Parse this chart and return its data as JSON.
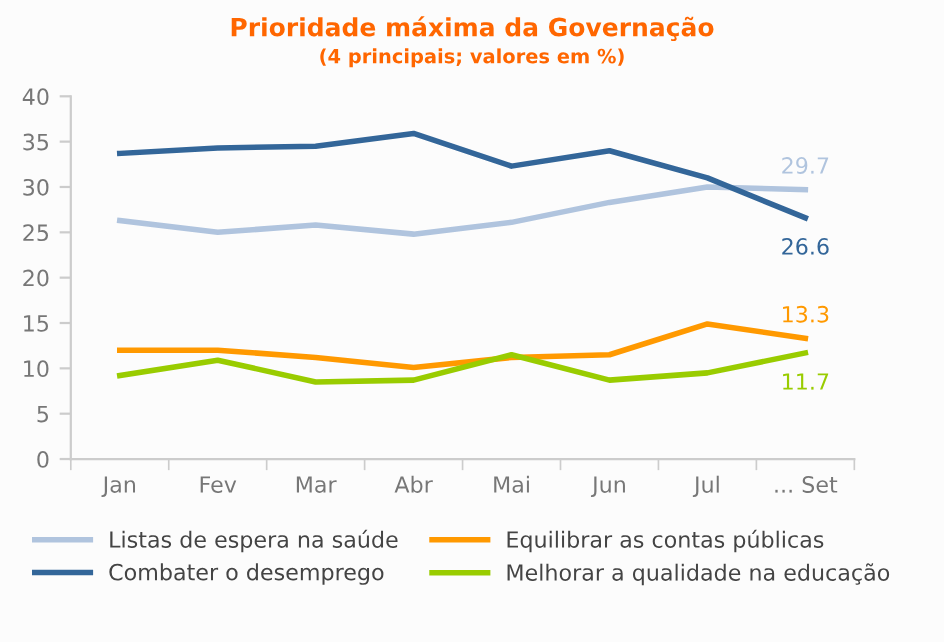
{
  "chart_data": {
    "type": "line",
    "title": "Prioridade máxima da Governação",
    "subtitle": "(4 principais; valores em %)",
    "categories": [
      "Jan",
      "Fev",
      "Mar",
      "Abr",
      "Mai",
      "Jun",
      "Jul",
      "... Set"
    ],
    "series": [
      {
        "name": "Listas de espera na saúde",
        "color": "#b0c4de",
        "values": [
          26.3,
          25.0,
          25.8,
          24.8,
          26.1,
          28.3,
          30.0,
          29.7
        ],
        "value_labels": [
          null,
          null,
          null,
          null,
          null,
          null,
          null,
          "29.7"
        ]
      },
      {
        "name": "Combater o desemprego",
        "color": "#336699",
        "values": [
          33.7,
          34.3,
          34.5,
          35.9,
          32.3,
          34.0,
          31.0,
          26.6
        ],
        "value_labels": [
          null,
          null,
          null,
          null,
          null,
          null,
          null,
          "26.6"
        ]
      },
      {
        "name": "Equilibrar as contas públicas",
        "color": "#ff9900",
        "values": [
          12.0,
          12.0,
          11.2,
          10.1,
          11.2,
          11.5,
          14.9,
          13.3
        ],
        "value_labels": [
          null,
          null,
          null,
          null,
          null,
          null,
          null,
          "13.3"
        ]
      },
      {
        "name": "Melhorar a qualidade na educação",
        "color": "#99cc00",
        "values": [
          9.2,
          10.9,
          8.5,
          8.7,
          11.5,
          8.7,
          9.5,
          11.7
        ],
        "value_labels": [
          null,
          null,
          null,
          null,
          null,
          null,
          null,
          "11.7"
        ]
      }
    ],
    "ylim": [
      0,
      40
    ],
    "yticks": [
      0,
      5,
      10,
      15,
      20,
      25,
      30,
      35,
      40
    ],
    "grid": false,
    "legend": "bottom",
    "marker": "none",
    "line_style": "solid"
  }
}
